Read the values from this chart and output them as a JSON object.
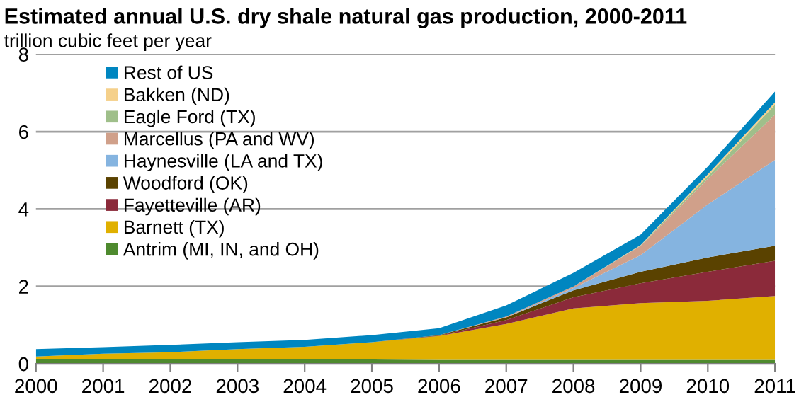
{
  "chart_data": {
    "type": "area",
    "stacked": true,
    "title": "Estimated annual U.S. dry shale natural gas production, 2000-2011",
    "subtitle": "trillion cubic feet per year",
    "x": [
      2000,
      2001,
      2002,
      2003,
      2004,
      2005,
      2006,
      2007,
      2008,
      2009,
      2010,
      2011
    ],
    "series": [
      {
        "name": "Antrim (MI, IN, and OH)",
        "color": "#4e8a2e",
        "values": [
          0.13,
          0.13,
          0.13,
          0.13,
          0.13,
          0.13,
          0.12,
          0.12,
          0.12,
          0.12,
          0.12,
          0.12
        ]
      },
      {
        "name": "Barnett (TX)",
        "color": "#e0b000",
        "values": [
          0.06,
          0.13,
          0.17,
          0.25,
          0.31,
          0.43,
          0.6,
          0.91,
          1.31,
          1.45,
          1.51,
          1.63
        ]
      },
      {
        "name": "Fayetteville (AR)",
        "color": "#8b2a3a",
        "values": [
          0,
          0,
          0,
          0,
          0,
          0,
          0.01,
          0.1,
          0.29,
          0.51,
          0.75,
          0.91
        ]
      },
      {
        "name": "Woodford (OK)",
        "color": "#5a4200",
        "values": [
          0,
          0,
          0,
          0,
          0,
          0,
          0.01,
          0.07,
          0.18,
          0.3,
          0.37,
          0.39
        ]
      },
      {
        "name": "Haynesville (LA and TX)",
        "color": "#85b4e0",
        "values": [
          0,
          0,
          0,
          0,
          0,
          0,
          0,
          0,
          0.06,
          0.43,
          1.37,
          2.22
        ]
      },
      {
        "name": "Marcellus (PA and WV)",
        "color": "#d0a08a",
        "values": [
          0,
          0,
          0,
          0,
          0,
          0,
          0,
          0.02,
          0.04,
          0.24,
          0.66,
          1.17
        ]
      },
      {
        "name": "Eagle Ford (TX)",
        "color": "#9fbf8a",
        "values": [
          0,
          0,
          0,
          0,
          0,
          0,
          0,
          0,
          0,
          0.01,
          0.07,
          0.26
        ]
      },
      {
        "name": "Bakken (ND)",
        "color": "#f5d08a",
        "values": [
          0,
          0,
          0,
          0,
          0,
          0,
          0,
          0,
          0,
          0.01,
          0.05,
          0.06
        ]
      },
      {
        "name": "Rest of US",
        "color": "#0086c0",
        "values": [
          0.19,
          0.17,
          0.19,
          0.18,
          0.18,
          0.18,
          0.18,
          0.29,
          0.35,
          0.27,
          0.2,
          0.28
        ]
      }
    ],
    "xlim": [
      2000,
      2011
    ],
    "xticks": [
      2000,
      2001,
      2002,
      2003,
      2004,
      2005,
      2006,
      2007,
      2008,
      2009,
      2010,
      2011
    ],
    "ylim": [
      0,
      8
    ],
    "yticks": [
      0,
      2,
      4,
      6,
      8
    ],
    "grid": "y",
    "legend": "top left"
  }
}
